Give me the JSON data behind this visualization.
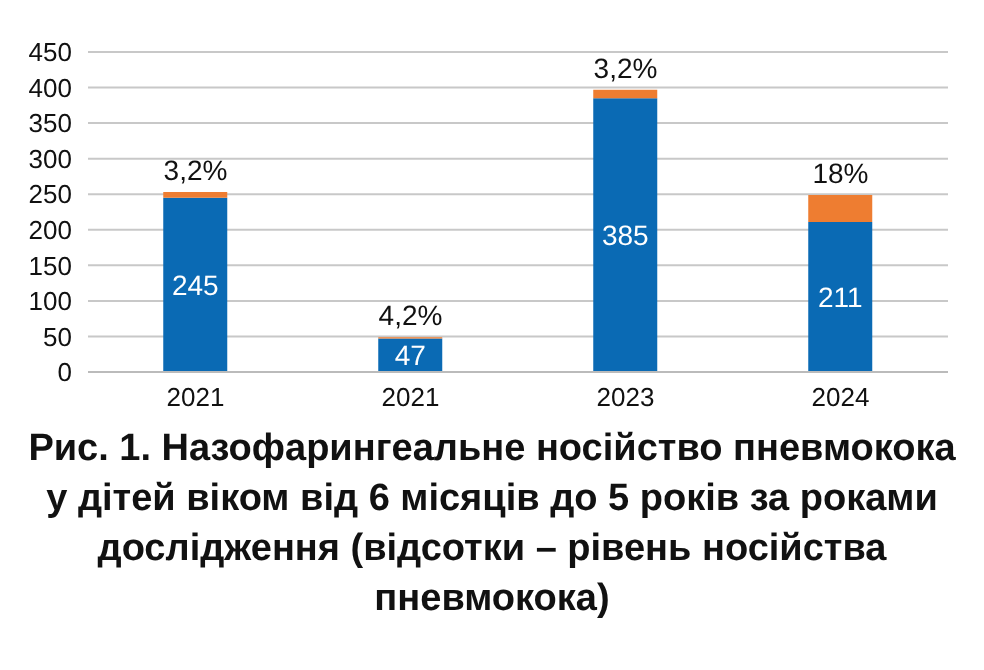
{
  "chart_data": {
    "type": "bar",
    "stacked": true,
    "title": "Рис. 1. Назофарингеальне носійство пневмокока у дітей віком від 6 місяців до 5 років за роками дослідження (відсотки – рівень носійства пневмокока)",
    "categories": [
      "2021",
      "2021",
      "2023",
      "2024"
    ],
    "series": [
      {
        "color": "#0a6ab4",
        "values": [
          245,
          47,
          385,
          211
        ],
        "value_labels": [
          "245",
          "47",
          "385",
          "211"
        ]
      },
      {
        "color": "#ee7d31",
        "values": [
          8,
          2,
          12,
          38
        ]
      }
    ],
    "annotations": [
      "3,2%",
      "4,2%",
      "3,2%",
      "18%"
    ],
    "ylim": [
      0,
      450
    ],
    "yticks": [
      0,
      50,
      100,
      150,
      200,
      250,
      300,
      350,
      400,
      450
    ],
    "grid": "y"
  }
}
